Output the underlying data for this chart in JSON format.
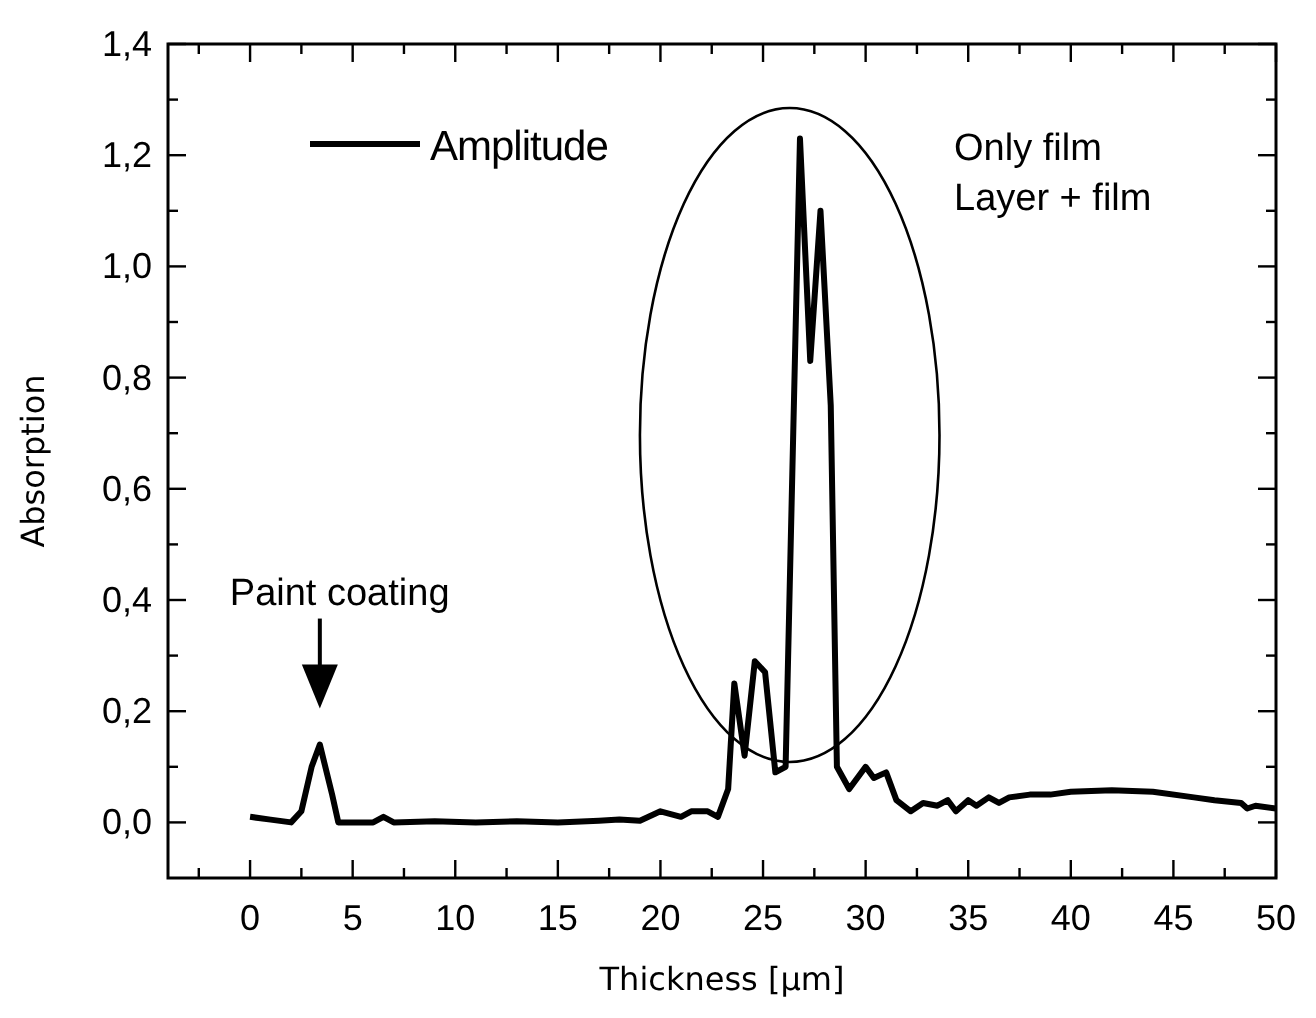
{
  "chart_data": {
    "type": "line",
    "xlabel": "Thickness [µm]",
    "ylabel": "Absorption",
    "xlim": [
      -4,
      50
    ],
    "ylim": [
      -0.1,
      1.4
    ],
    "xticks": [
      {
        "value": -2.5,
        "label": null
      },
      0,
      {
        "value": 2.5,
        "label": null
      },
      5,
      {
        "value": 7.5,
        "label": null
      },
      10,
      {
        "value": 12.5,
        "label": null
      },
      15,
      {
        "value": 17.5,
        "label": null
      },
      20,
      {
        "value": 22.5,
        "label": null
      },
      25,
      {
        "value": 27.5,
        "label": null
      },
      30,
      {
        "value": 32.5,
        "label": null
      },
      35,
      {
        "value": 37.5,
        "label": null
      },
      40,
      {
        "value": 42.5,
        "label": null
      },
      45,
      {
        "value": 47.5,
        "label": null
      },
      50
    ],
    "yticks": [
      {
        "value": 0,
        "label": "0,0"
      },
      {
        "value": 0.1,
        "label": null
      },
      {
        "value": 0.2,
        "label": "0,2"
      },
      {
        "value": 0.3,
        "label": null
      },
      {
        "value": 0.4,
        "label": "0,4"
      },
      {
        "value": 0.5,
        "label": null
      },
      {
        "value": 0.6,
        "label": "0,6"
      },
      {
        "value": 0.7,
        "label": null
      },
      {
        "value": 0.8,
        "label": "0,8"
      },
      {
        "value": 0.9,
        "label": null
      },
      {
        "value": 1.0,
        "label": "1,0"
      },
      {
        "value": 1.1,
        "label": null
      },
      {
        "value": 1.2,
        "label": "1,2"
      },
      {
        "value": 1.3,
        "label": null
      },
      {
        "value": 1.4,
        "label": "1,4"
      }
    ],
    "grid": false,
    "legend": "top left",
    "marker": "none",
    "line_style": "solid",
    "series": [
      {
        "name": "Amplitude",
        "color": "#000000",
        "x": [
          0,
          1,
          2,
          2.5,
          3,
          3.4,
          4,
          4.3,
          6,
          6.5,
          7,
          9,
          11,
          13,
          15,
          17,
          18,
          19,
          20,
          21,
          21.5,
          22.3,
          22.8,
          23.3,
          23.6,
          24.1,
          24.6,
          25.1,
          25.6,
          26.1,
          26.8,
          27.3,
          27.8,
          28.3,
          28.6,
          29.2,
          30,
          30.4,
          31,
          31.5,
          32.2,
          32.8,
          33.5,
          34,
          34.4,
          35,
          35.4,
          36,
          36.5,
          37,
          38,
          39,
          40,
          42,
          44,
          46,
          47,
          48.3,
          48.6,
          49,
          50
        ],
        "values": [
          0.01,
          0.005,
          0,
          0.02,
          0.1,
          0.14,
          0.05,
          0,
          0,
          0.01,
          0,
          0.002,
          0,
          0.002,
          0,
          0.003,
          0.005,
          0.003,
          0.02,
          0.01,
          0.02,
          0.02,
          0.01,
          0.06,
          0.25,
          0.12,
          0.29,
          0.27,
          0.09,
          0.1,
          1.23,
          0.83,
          1.1,
          0.75,
          0.1,
          0.06,
          0.1,
          0.08,
          0.09,
          0.04,
          0.02,
          0.035,
          0.03,
          0.04,
          0.02,
          0.04,
          0.03,
          0.045,
          0.035,
          0.045,
          0.05,
          0.05,
          0.055,
          0.058,
          0.055,
          0.045,
          0.04,
          0.035,
          0.025,
          0.03,
          0.025
        ]
      }
    ],
    "annotations": [
      "Paint coating",
      "Only film",
      "Layer + film"
    ]
  }
}
